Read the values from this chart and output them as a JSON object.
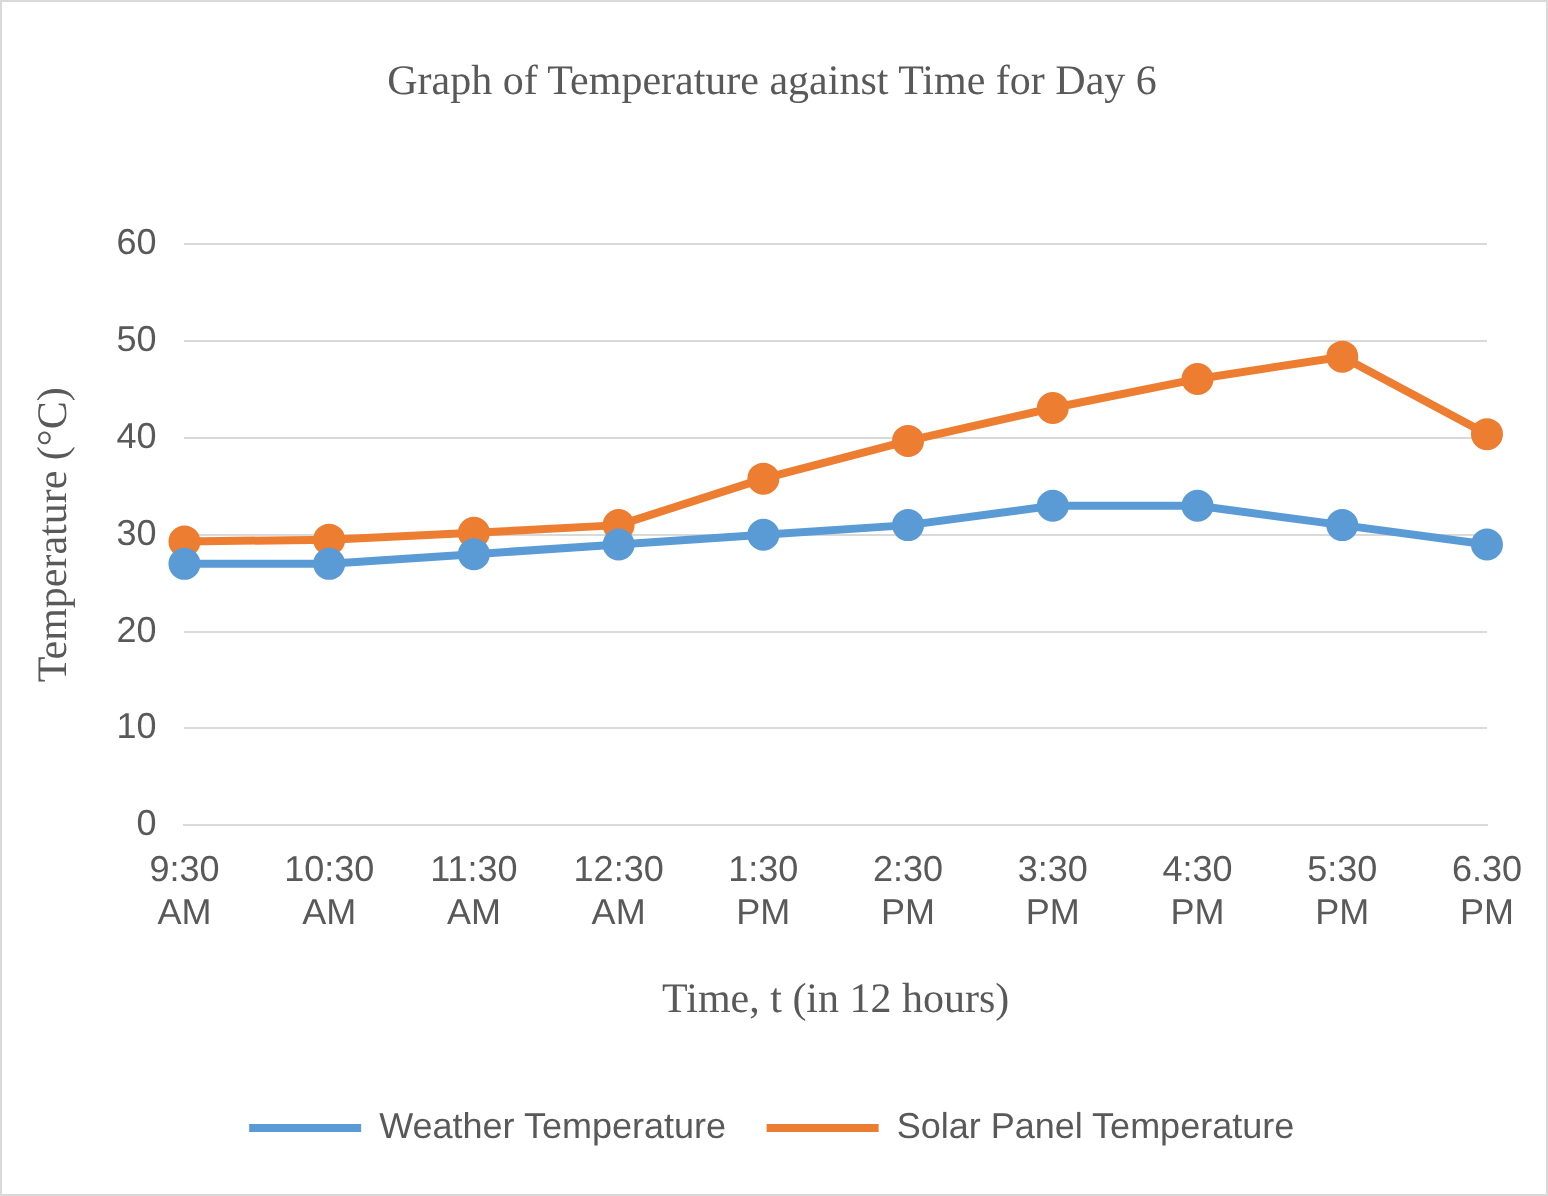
{
  "chart_data": {
    "type": "line",
    "title": "Graph of Temperature against Time for Day 6",
    "xlabel": "Time, t (in 12 hours)",
    "ylabel": "Temperature (°C)",
    "categories": [
      "9:30 AM",
      "10:30 AM",
      "11:30 AM",
      "12:30 AM",
      "1:30 PM",
      "2:30 PM",
      "3:30 PM",
      "4:30 PM",
      "5:30 PM",
      "6.30 PM"
    ],
    "series": [
      {
        "name": "Weather Temperature",
        "color": "#5b9bd5",
        "values": [
          27,
          27,
          28,
          29,
          30,
          31,
          33,
          33,
          31,
          29
        ]
      },
      {
        "name": "Solar Panel Temperature",
        "color": "#ed7d31",
        "values": [
          29.3,
          29.5,
          30.2,
          31,
          35.8,
          39.7,
          43.1,
          46.1,
          48.4,
          40.4
        ]
      }
    ],
    "ylim": [
      0,
      60
    ],
    "yticks": [
      0,
      10,
      20,
      30,
      40,
      50,
      60
    ],
    "grid": "y",
    "legend": "bottom",
    "marker": "circle",
    "line_style": "solid"
  }
}
